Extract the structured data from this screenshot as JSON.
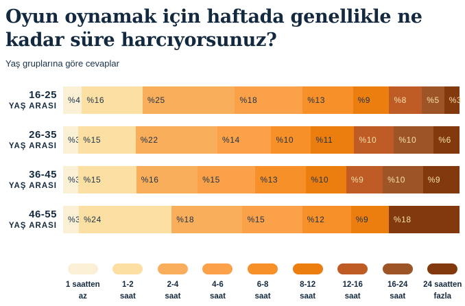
{
  "title": "Oyun oynamak için haftada genellikle ne kadar süre harcıyorsunuz?",
  "subtitle": "Yaş gruplarına göre cevaplar",
  "colors": {
    "background": "#FFFFFF",
    "title_text": "#13293F",
    "dark_text": "#1B3149",
    "light_text": "#F6E0A9",
    "palette": [
      "#FAF0D5",
      "#FCE0A3",
      "#F9AE5C",
      "#FAA14A",
      "#F79029",
      "#EC7E10",
      "#BF5B25",
      "#9D5528",
      "#82390E"
    ]
  },
  "chart_data": {
    "type": "bar",
    "orientation": "horizontal",
    "stacked": true,
    "unit": "percent",
    "value_prefix": "%",
    "title": "Oyun oynamak için haftada genellikle ne kadar süre harcıyorsunuz?",
    "subtitle": "Yaş gruplarına göre cevaplar",
    "categories": [
      "1 saatten az",
      "1-2 saat",
      "2-4 saat",
      "4-6 saat",
      "6-8 saat",
      "8-12 saat",
      "12-16 saat",
      "16-24 saat",
      "24 saatten fazla"
    ],
    "legend_lines": [
      [
        "1 saatten",
        "az"
      ],
      [
        "1-2",
        "saat"
      ],
      [
        "2-4",
        "saat"
      ],
      [
        "4-6",
        "saat"
      ],
      [
        "6-8",
        "saat"
      ],
      [
        "8-12",
        "saat"
      ],
      [
        "12-16",
        "saat"
      ],
      [
        "16-24",
        "saat"
      ],
      [
        "24 saatten",
        "fazla"
      ]
    ],
    "legend_position": "bottom",
    "groups": [
      {
        "label_line1": "16-25",
        "label_line2": "YAŞ ARASI",
        "values": [
          4,
          16,
          25,
          18,
          13,
          9,
          8,
          5,
          3
        ]
      },
      {
        "label_line1": "26-35",
        "label_line2": "YAŞ ARASI",
        "values": [
          3,
          15,
          22,
          14,
          10,
          11,
          10,
          10,
          6
        ]
      },
      {
        "label_line1": "36-45",
        "label_line2": "YAŞ ARASI",
        "values": [
          3,
          15,
          16,
          15,
          13,
          10,
          9,
          10,
          9
        ]
      },
      {
        "label_line1": "46-55",
        "label_line2": "YAŞ ARASI",
        "values": [
          3,
          24,
          18,
          15,
          12,
          9,
          0,
          0,
          18
        ]
      }
    ]
  }
}
